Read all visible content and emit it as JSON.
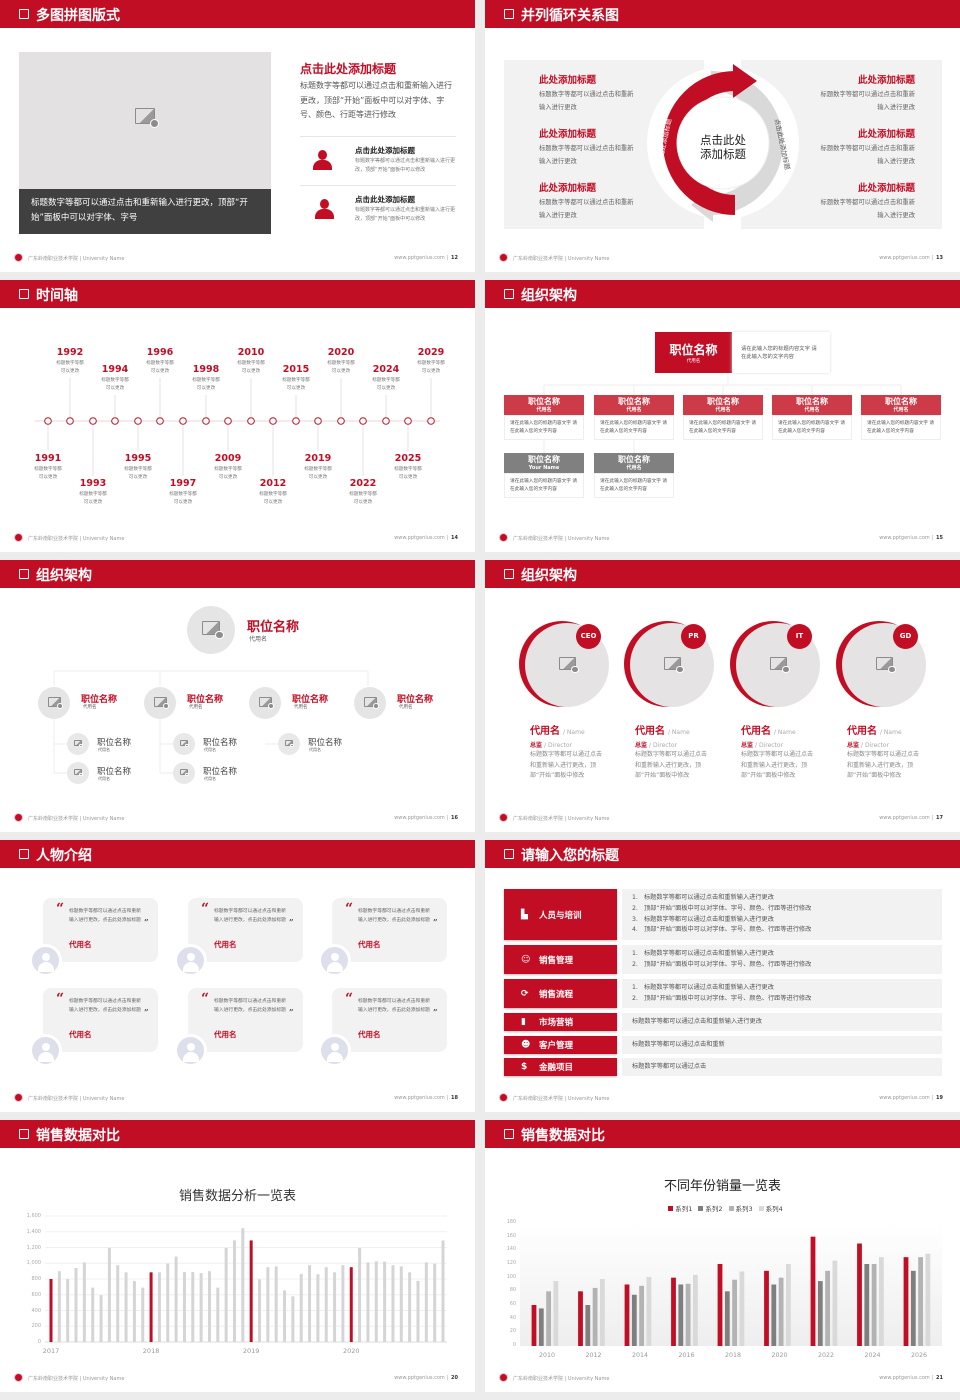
{
  "brand": {
    "accent": "#c20e25",
    "accent_light": "#cd3a48",
    "gray": "#808080",
    "panel": "#f2f2f2"
  },
  "footer": {
    "school": "广东岭南职业技术学院 | University Name",
    "site": "www.pptgenius.com |"
  },
  "slides": [
    {
      "title": "多图拼图版式",
      "page": "12",
      "image_caption": "标题数字等都可以通过点击和重新输入进行更改，顶部“开始”面板中可以对字体、字号",
      "heading": "点击此处添加标题",
      "body": "标题数字等都可以通过点击和重新输入进行更改，顶部“开始”面板中可以对字体、字号、颜色、行距等进行修改",
      "items": [
        {
          "icon": "users-icon",
          "title": "点击此处添加标题",
          "text": "标题数字等都可以通过点击和重新输入进行更改，顶部“开始”面板中可以修改"
        },
        {
          "icon": "user-icon",
          "title": "点击此处添加标题",
          "text": "标题数字等都可以通过点击和重新输入进行更改，顶部“开始”面板中可以修改"
        }
      ]
    },
    {
      "title": "并列循环关系图",
      "page": "13",
      "center": [
        "点击此处",
        "添加标题"
      ],
      "arc_left": "点击此处添加标题",
      "arc_right": "点击此处添加标题",
      "left_items": [
        {
          "title": "此处添加标题",
          "text": "标题数字等都可以通过点击和重新输入进行更改"
        },
        {
          "title": "此处添加标题",
          "text": "标题数字等都可以通过点击和重新输入进行更改"
        },
        {
          "title": "此处添加标题",
          "text": "标题数字等都可以通过点击和重新输入进行更改"
        }
      ],
      "right_items": [
        {
          "title": "此处添加标题",
          "text": "标题数字等都可以通过点击和重新输入进行更改"
        },
        {
          "title": "此处添加标题",
          "text": "标题数字等都可以通过点击和重新输入进行更改"
        },
        {
          "title": "此处添加标题",
          "text": "标题数字等都可以通过点击和重新输入进行更改"
        }
      ]
    },
    {
      "title": "时间轴",
      "page": "14",
      "events": [
        {
          "year": "1991",
          "text": "标题数字等都可以更改",
          "side": "bottom"
        },
        {
          "year": "1992",
          "text": "标题数字等都可以更改",
          "side": "top"
        },
        {
          "year": "1993",
          "text": "标题数字等都可以更改",
          "side": "bottom"
        },
        {
          "year": "1994",
          "text": "标题数字等都可以更改",
          "side": "top"
        },
        {
          "year": "1995",
          "text": "标题数字等都可以更改",
          "side": "bottom"
        },
        {
          "year": "1996",
          "text": "标题数字等都可以更改",
          "side": "top"
        },
        {
          "year": "1997",
          "text": "标题数字等都可以更改",
          "side": "bottom"
        },
        {
          "year": "1998",
          "text": "标题数字等都可以更改",
          "side": "top"
        },
        {
          "year": "2009",
          "text": "标题数字等都可以更改",
          "side": "bottom"
        },
        {
          "year": "2010",
          "text": "标题数字等都可以更改",
          "side": "top"
        },
        {
          "year": "2012",
          "text": "标题数字等都可以更改",
          "side": "bottom"
        },
        {
          "year": "2015",
          "text": "标题数字等都可以更改",
          "side": "top"
        },
        {
          "year": "2019",
          "text": "标题数字等都可以更改",
          "side": "bottom"
        },
        {
          "year": "2020",
          "text": "标题数字等都可以更改",
          "side": "top"
        },
        {
          "year": "2022",
          "text": "标题数字等都可以更改",
          "side": "bottom"
        },
        {
          "year": "2024",
          "text": "标题数字等都可以更改",
          "side": "top"
        },
        {
          "year": "2025",
          "text": "标题数字等都可以更改",
          "side": "bottom"
        },
        {
          "year": "2029",
          "text": "标题数字等都可以更改",
          "side": "top"
        }
      ]
    },
    {
      "title": "组织架构",
      "page": "15",
      "head": {
        "name": "职位名称",
        "alias": "代用名",
        "desc": "请在此输入您的标题内容文字 请在此输入您的文字内容"
      },
      "cards": [
        {
          "name": "职位名称",
          "alias": "代用名",
          "desc": "请在此输入您的标题内容文字 请在此输入您的文字内容",
          "style": "red"
        },
        {
          "name": "职位名称",
          "alias": "代用名",
          "desc": "请在此输入您的标题内容文字 请在此输入您的文字内容",
          "style": "red"
        },
        {
          "name": "职位名称",
          "alias": "代用名",
          "desc": "请在此输入您的标题内容文字 请在此输入您的文字内容",
          "style": "red"
        },
        {
          "name": "职位名称",
          "alias": "代用名",
          "desc": "请在此输入您的标题内容文字 请在此输入您的文字内容",
          "style": "red"
        },
        {
          "name": "职位名称",
          "alias": "代用名",
          "desc": "请在此输入您的标题内容文字 请在此输入您的文字内容",
          "style": "red"
        },
        {
          "name": "职位名称",
          "alias": "Your Name",
          "desc": "请在此输入您的标题内容文字 请在此输入您的文字内容",
          "style": "gray"
        },
        {
          "name": "职位名称",
          "alias": "代用名",
          "desc": "请在此输入您的标题内容文字 请在此输入您的文字内容",
          "style": "gray"
        }
      ]
    },
    {
      "title": "组织架构",
      "page": "16",
      "top": {
        "name": "职位名称",
        "alias": "代用名"
      },
      "branches": [
        {
          "name": "职位名称",
          "alias": "代用名",
          "children": [
            {
              "name": "职位名称",
              "alias": "代用名"
            },
            {
              "name": "职位名称",
              "alias": "代用名"
            }
          ]
        },
        {
          "name": "职位名称",
          "alias": "代用名",
          "children": [
            {
              "name": "职位名称",
              "alias": "代用名"
            },
            {
              "name": "职位名称",
              "alias": "代用名"
            }
          ]
        },
        {
          "name": "职位名称",
          "alias": "代用名",
          "children": [
            {
              "name": "职位名称",
              "alias": "代用名"
            }
          ]
        },
        {
          "name": "职位名称",
          "alias": "代用名",
          "children": []
        }
      ]
    },
    {
      "title": "组织架构",
      "page": "17",
      "members": [
        {
          "badge": "CEO",
          "name": "代用名",
          "name_en": "/ Name",
          "role": "总监",
          "role_en": "/  Director",
          "desc": "标题数字等都可以通过点击和重新输入进行更改，顶部“开始”面板中修改"
        },
        {
          "badge": "PR",
          "name": "代用名",
          "name_en": "/ Name",
          "role": "总监",
          "role_en": "/  Director",
          "desc": "标题数字等都可以通过点击和重新输入进行更改，顶部“开始”面板中修改"
        },
        {
          "badge": "IT",
          "name": "代用名",
          "name_en": "/ Name",
          "role": "总监",
          "role_en": "/  Director",
          "desc": "标题数字等都可以通过点击和重新输入进行更改，顶部“开始”面板中修改"
        },
        {
          "badge": "GD",
          "name": "代用名",
          "name_en": "/ Name",
          "role": "总监",
          "role_en": "/  Director",
          "desc": "标题数字等都可以通过点击和重新输入进行更改，顶部“开始”面板中修改"
        }
      ]
    },
    {
      "title": "人物介绍",
      "page": "18",
      "cards": [
        {
          "quote": "标题数字等都可以通过点击和重新输入进行更改，点击此处添加标题",
          "name": "代用名"
        },
        {
          "quote": "标题数字等都可以通过点击和重新输入进行更改，点击此处添加标题",
          "name": "代用名"
        },
        {
          "quote": "标题数字等都可以通过点击和重新输入进行更改，点击此处添加标题",
          "name": "代用名"
        },
        {
          "quote": "标题数字等都可以通过点击和重新输入进行更改，点击此处添加标题",
          "name": "代用名"
        },
        {
          "quote": "标题数字等都可以通过点击和重新输入进行更改，点击此处添加标题",
          "name": "代用名"
        },
        {
          "quote": "标题数字等都可以通过点击和重新输入进行更改，点击此处添加标题",
          "name": "代用名"
        }
      ]
    },
    {
      "title": "请输入您的标题",
      "page": "19",
      "rows": [
        {
          "icon": "training-icon",
          "label": "人员与培训",
          "numbered": true,
          "lines": [
            "标题数字等都可以通过点击和重新输入进行更改",
            "顶部“开始”面板中可以对字体、字号、颜色、行距等进行修改",
            "标题数字等都可以通过点击和重新输入进行更改",
            "顶部“开始”面板中可以对字体、字号、颜色、行距等进行修改"
          ]
        },
        {
          "icon": "sales-person-icon",
          "label": "销售管理",
          "numbered": true,
          "lines": [
            "标题数字等都可以通过点击和重新输入进行更改",
            "顶部“开始”面板中可以对字体、字号、颜色、行距等进行修改"
          ]
        },
        {
          "icon": "cycle-icon",
          "label": "销售流程",
          "numbered": true,
          "lines": [
            "标题数字等都可以通过点击和重新输入进行更改",
            "顶部“开始”面板中可以对字体、字号、颜色、行距等进行修改"
          ]
        },
        {
          "icon": "bar-chart-icon",
          "label": "市场营销",
          "numbered": false,
          "lines": [
            "标题数字等都可以通过点击和重新输入进行更改"
          ]
        },
        {
          "icon": "customers-icon",
          "label": "客户管理",
          "numbered": false,
          "lines": [
            "标题数字等都可以通过点击和重新"
          ]
        },
        {
          "icon": "finance-icon",
          "label": "金融项目",
          "numbered": false,
          "lines": [
            "标题数字等都可以通过点击"
          ]
        }
      ]
    },
    {
      "title": "销售数据对比",
      "page": "20"
    },
    {
      "title": "销售数据对比",
      "page": "21"
    }
  ],
  "chart_data": [
    {
      "type": "bar",
      "title": "销售数据分析一览表",
      "ylim": [
        0,
        1600
      ],
      "y_ticks": [
        "0",
        "200",
        "400",
        "600",
        "800",
        "1,000",
        "1,200",
        "1,400",
        "1,600"
      ],
      "x_tick_labels": [
        "2017",
        "2018",
        "2019",
        "2020"
      ],
      "values": [
        800,
        900,
        800,
        940,
        1010,
        690,
        595,
        1195,
        975,
        885,
        775,
        690,
        885,
        885,
        995,
        1085,
        890,
        890,
        875,
        900,
        690,
        1195,
        1290,
        1445,
        1290,
        795,
        950,
        960,
        655,
        580,
        865,
        975,
        860,
        950,
        885,
        975,
        950,
        1195,
        1010,
        1025,
        1020,
        975,
        960,
        885,
        775,
        1010,
        995,
        1290
      ],
      "highlighted_bars": [
        "2017",
        "2018",
        "2019",
        "2020"
      ],
      "highlight_color": "#c20e25",
      "bar_color": "#d5d5d5",
      "grid": true
    },
    {
      "type": "bar",
      "title": "不同年份销量一览表",
      "ylim": [
        0,
        180
      ],
      "y_ticks": [
        "0",
        "20",
        "40",
        "60",
        "80",
        "100",
        "120",
        "140",
        "160",
        "180"
      ],
      "categories": [
        "2010",
        "2012",
        "2014",
        "2016",
        "2018",
        "2020",
        "2022",
        "2024",
        "2026"
      ],
      "legend": "top",
      "series": [
        {
          "name": "系列1",
          "color": "#c20e25",
          "values": [
            60,
            80,
            90,
            100,
            120,
            110,
            160,
            150,
            130
          ]
        },
        {
          "name": "系列2",
          "color": "#7f7f7f",
          "values": [
            55,
            60,
            75,
            90,
            80,
            90,
            95,
            120,
            110
          ]
        },
        {
          "name": "系列3",
          "color": "#b3b3b3",
          "values": [
            80,
            85,
            88,
            91,
            97,
            100,
            110,
            120,
            130
          ]
        },
        {
          "name": "系列4",
          "color": "#d9d9d9",
          "values": [
            95,
            98,
            101,
            104,
            109,
            120,
            125,
            130,
            135
          ]
        }
      ]
    }
  ]
}
